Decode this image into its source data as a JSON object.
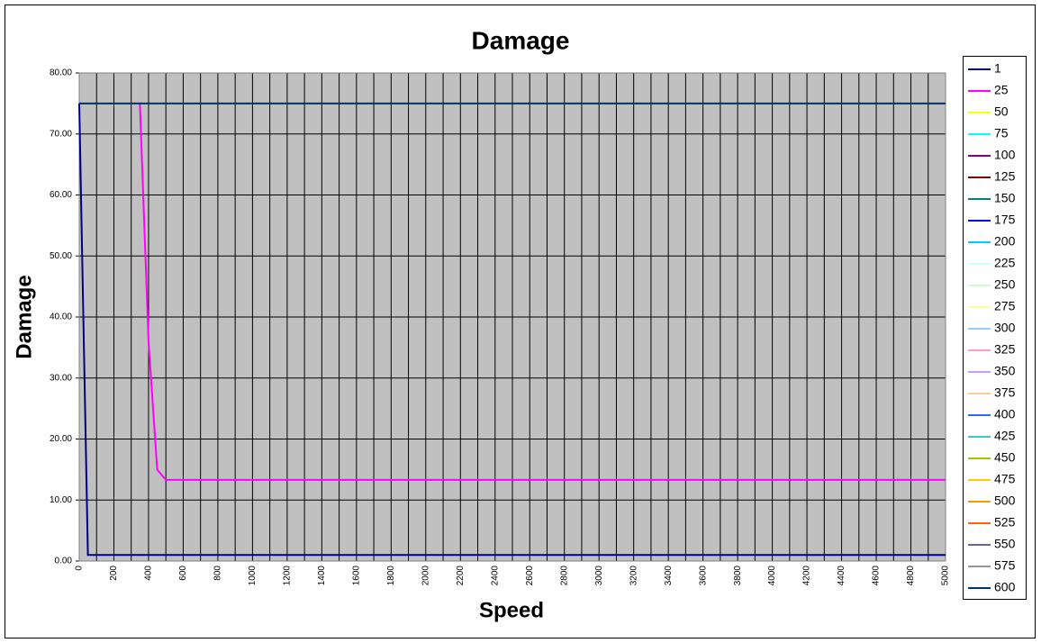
{
  "chart_data": {
    "type": "line",
    "title": "Damage",
    "x_label": "Speed",
    "y_label": "Damage",
    "xlim": [
      0,
      5000
    ],
    "xticks": [
      0,
      200,
      400,
      600,
      800,
      1000,
      1200,
      1400,
      1600,
      1800,
      2000,
      2200,
      2400,
      2600,
      2800,
      3000,
      3200,
      3400,
      3600,
      3800,
      4000,
      4200,
      4400,
      4600,
      4800,
      5000
    ],
    "xminorticks": [
      100,
      300,
      500,
      700,
      900,
      1100,
      1300,
      1500,
      1700,
      1900,
      2100,
      2300,
      2500,
      2700,
      2900,
      3100,
      3300,
      3500,
      3700,
      3900,
      4100,
      4300,
      4500,
      4700,
      4900
    ],
    "ylim": [
      0,
      80
    ],
    "yticks": [
      {
        "value": 0,
        "label": "0.00"
      },
      {
        "value": 10,
        "label": "10.00"
      },
      {
        "value": 20,
        "label": "20.00"
      },
      {
        "value": 30,
        "label": "30.00"
      },
      {
        "value": 40,
        "label": "40.00"
      },
      {
        "value": 50,
        "label": "50.00"
      },
      {
        "value": 60,
        "label": "60.00"
      },
      {
        "value": 70,
        "label": "70.00"
      },
      {
        "value": 80,
        "label": "80.00"
      }
    ],
    "grid": true,
    "legend": "right",
    "plot_background": "#c0c0c0",
    "series": [
      {
        "name": "1",
        "color": "#000080",
        "x": [
          0,
          50,
          5000
        ],
        "values": [
          75,
          1,
          1
        ]
      },
      {
        "name": "25",
        "color": "#ff00ff",
        "x": [
          350,
          400,
          450,
          500,
          5000
        ],
        "values": [
          75,
          36,
          15,
          13.3,
          13.3
        ]
      },
      {
        "name": "50",
        "color": "#ffff00"
      },
      {
        "name": "75",
        "color": "#00ffff"
      },
      {
        "name": "100",
        "color": "#800080"
      },
      {
        "name": "125",
        "color": "#800000"
      },
      {
        "name": "150",
        "color": "#008080"
      },
      {
        "name": "175",
        "color": "#0000ff"
      },
      {
        "name": "200",
        "color": "#00ccff"
      },
      {
        "name": "225",
        "color": "#ccffff"
      },
      {
        "name": "250",
        "color": "#ccffcc"
      },
      {
        "name": "275",
        "color": "#ffff99"
      },
      {
        "name": "300",
        "color": "#99ccff"
      },
      {
        "name": "325",
        "color": "#ff99cc"
      },
      {
        "name": "350",
        "color": "#cc99ff"
      },
      {
        "name": "375",
        "color": "#ffcc99"
      },
      {
        "name": "400",
        "color": "#3366ff"
      },
      {
        "name": "425",
        "color": "#33cccc"
      },
      {
        "name": "450",
        "color": "#99cc00"
      },
      {
        "name": "475",
        "color": "#ffcc00"
      },
      {
        "name": "500",
        "color": "#ff9900"
      },
      {
        "name": "525",
        "color": "#ff6600"
      },
      {
        "name": "550",
        "color": "#666699"
      },
      {
        "name": "575",
        "color": "#969696"
      },
      {
        "name": "600",
        "color": "#003366",
        "x": [
          0,
          5000
        ],
        "values": [
          75,
          75
        ]
      }
    ]
  }
}
